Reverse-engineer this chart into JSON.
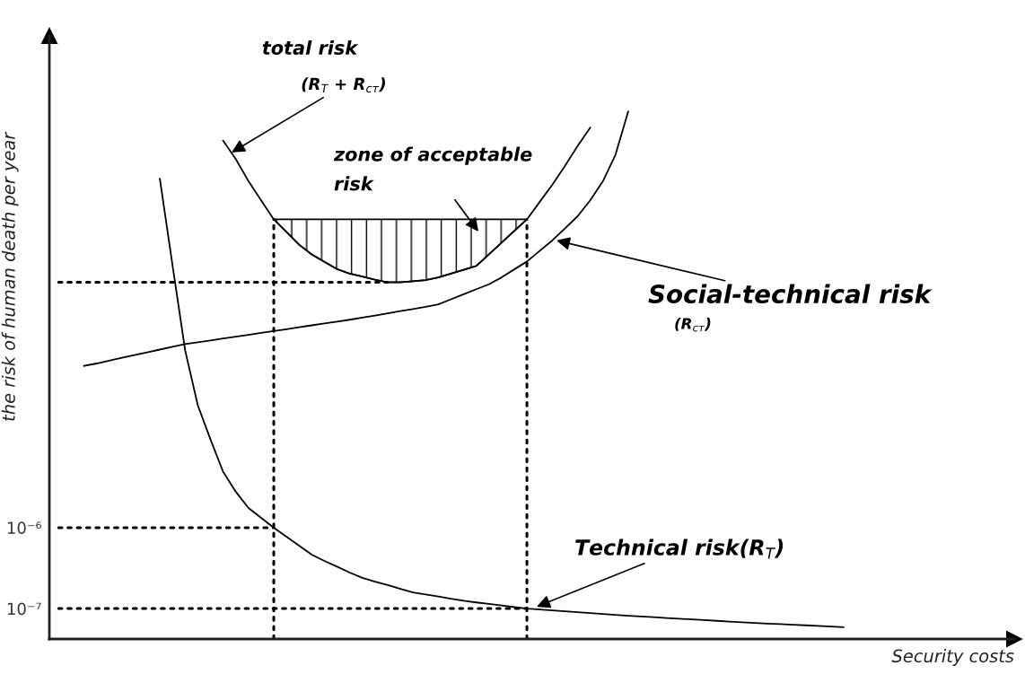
{
  "chart_data": {
    "type": "line",
    "xlabel": "Security costs",
    "ylabel": "the risk of human death per year",
    "log": "y",
    "ylim": [
      4.2e-08,
      1.2
    ],
    "yticks": [
      {
        "value": 1e-07,
        "label": "10⁻⁷"
      },
      {
        "value": 1e-06,
        "label": "10⁻⁶"
      }
    ],
    "tick_labels": "y",
    "grid": false,
    "marker": "none",
    "categories": [
      null,
      null,
      null,
      null,
      null,
      null,
      null,
      null,
      null,
      null,
      null,
      null,
      null,
      null,
      null,
      null,
      null,
      null,
      null,
      null,
      null,
      null,
      null,
      null,
      null,
      null,
      null,
      null,
      null,
      null,
      null,
      null,
      null,
      null,
      null,
      null,
      null,
      null,
      null,
      null,
      null,
      null,
      null,
      null,
      null,
      null,
      null,
      null,
      null,
      null,
      null,
      null,
      null,
      null,
      null,
      null,
      null,
      null,
      null,
      null,
      null,
      null,
      null
    ],
    "series": [
      {
        "color": "#000000",
        "values": [
          null,
          null,
          null,
          null,
          null,
          null,
          null,
          null,
          0.0205,
          0.00175,
          0.000155,
          3.24e-05,
          1.23e-05,
          4.89e-06,
          2.78e-06,
          1.75e-06,
          1.32e-06,
          1e-06,
          7.74e-07,
          6e-07,
          4.64e-07,
          3.88e-07,
          3.29e-07,
          2.78e-07,
          2.39e-07,
          2.15e-07,
          1.95e-07,
          1.75e-07,
          1.58e-07,
          1.49e-07,
          1.41e-07,
          1.32e-07,
          1.25e-07,
          1.19e-07,
          1.14e-07,
          1.09e-07,
          1.04e-07,
          1e-07,
          9.75e-08,
          9.5e-08,
          9.26e-08,
          9.03e-08,
          8.8e-08,
          8.58e-08,
          8.36e-08,
          8.15e-08,
          7.98e-08,
          7.82e-08,
          7.64e-08,
          7.48e-08,
          7.34e-08,
          7.19e-08,
          7.05e-08,
          6.89e-08,
          6.75e-08,
          6.64e-08,
          6.52e-08,
          6.41e-08,
          6.31e-08,
          6.2e-08,
          6.09e-08,
          6e-08,
          5.89e-08
        ]
      },
      {
        "color": "#000000",
        "values": [
          null,
          null,
          0.0001,
          0.000107,
          0.000116,
          0.000126,
          0.000136,
          0.000147,
          0.000159,
          0.000172,
          0.000186,
          0.000196,
          0.000206,
          0.000218,
          0.00023,
          0.000242,
          0.000256,
          0.000269,
          0.000284,
          0.0003,
          0.000317,
          0.000334,
          0.000353,
          0.000372,
          0.000394,
          0.000419,
          0.000447,
          0.000475,
          0.000505,
          0.000538,
          0.000577,
          0.000665,
          0.000769,
          0.000887,
          0.00102,
          0.00124,
          0.00156,
          0.00195,
          0.00263,
          0.00355,
          0.00498,
          0.00706,
          0.0111,
          0.0191,
          0.0409,
          0.139,
          null,
          null,
          null,
          null,
          null,
          null,
          null,
          null,
          null,
          null,
          null,
          null,
          null,
          null,
          null,
          null,
          null
        ]
      },
      {
        "color": "#000000",
        "values": [
          null,
          null,
          null,
          null,
          null,
          null,
          null,
          null,
          null,
          null,
          null,
          null,
          null,
          0.0607,
          0.036,
          0.0192,
          0.0111,
          0.00647,
          0.00453,
          0.00315,
          0.00238,
          0.00193,
          0.00157,
          0.00138,
          0.00127,
          0.00116,
          0.00108,
          0.00108,
          0.00111,
          0.00115,
          0.00124,
          0.00138,
          0.00154,
          0.00172,
          0.00239,
          0.00333,
          0.00466,
          0.00647,
          0.0106,
          0.0173,
          0.0296,
          0.0521,
          0.0879,
          null,
          null,
          null,
          null,
          null,
          null,
          null,
          null,
          null,
          null,
          null,
          null,
          null,
          null,
          null,
          null,
          null,
          null,
          null,
          null
        ],
        "lower": [
          null,
          null,
          null,
          null,
          null,
          null,
          null,
          null,
          null,
          null,
          null,
          null,
          null,
          null,
          null,
          null,
          null,
          0.00647,
          0.00453,
          0.00315,
          0.00238,
          0.00193,
          0.00157,
          0.00138,
          0.00127,
          0.00116,
          0.00108,
          0.00108,
          0.00111,
          0.00115,
          0.00124,
          0.00138,
          0.00154,
          0.00172,
          0.00239,
          0.00333,
          0.00466,
          0.00647,
          null,
          null,
          null,
          null,
          null,
          null,
          null,
          null,
          null,
          null,
          null,
          null,
          null,
          null,
          null,
          null,
          null,
          null,
          null,
          null,
          null,
          null,
          null,
          null,
          null
        ],
        "upper": [
          null,
          null,
          null,
          null,
          null,
          null,
          null,
          null,
          null,
          null,
          null,
          null,
          null,
          null,
          null,
          null,
          null,
          0.00647,
          0.00647,
          0.00647,
          0.00647,
          0.00647,
          0.00647,
          0.00647,
          0.00647,
          0.00647,
          0.00647,
          0.00647,
          0.00647,
          0.00647,
          0.00647,
          0.00647,
          0.00647,
          0.00647,
          0.00647,
          0.00647,
          0.00647,
          0.00647,
          null,
          null,
          null,
          null,
          null,
          null,
          null,
          null,
          null,
          null,
          null,
          null,
          null,
          null,
          null,
          null,
          null,
          null,
          null,
          null,
          null,
          null,
          null,
          null,
          null
        ]
      },
      {
        "color": "#000000",
        "line_style": "dotted",
        "values": [
          0.00108,
          0.00108,
          0.00108,
          0.00108,
          0.00108,
          0.00108,
          0.00108,
          0.00108,
          0.00108,
          0.00108,
          0.00108,
          0.00108,
          0.00108,
          0.00108,
          0.00108,
          0.00108,
          0.00108,
          0.00108,
          0.00108,
          0.00108,
          0.00108,
          0.00108,
          0.00108,
          0.00108,
          0.00108,
          0.00108,
          0.00108,
          null,
          null,
          null,
          null,
          null,
          null,
          null,
          null,
          null,
          null,
          null,
          null,
          null,
          null,
          null,
          null,
          null,
          null,
          null,
          null,
          null,
          null,
          null,
          null,
          null,
          null,
          null,
          null,
          null,
          null,
          null,
          null,
          null,
          null,
          null,
          null
        ]
      },
      {
        "color": "#000000",
        "line_style": "dotted",
        "values": [
          1e-06,
          1e-06,
          1e-06,
          1e-06,
          1e-06,
          1e-06,
          1e-06,
          1e-06,
          1e-06,
          1e-06,
          1e-06,
          1e-06,
          1e-06,
          1e-06,
          1e-06,
          1e-06,
          1e-06,
          1e-06,
          null,
          null,
          null,
          null,
          null,
          null,
          null,
          null,
          null,
          null,
          null,
          null,
          null,
          null,
          null,
          null,
          null,
          null,
          null,
          null,
          null,
          null,
          null,
          null,
          null,
          null,
          null,
          null,
          null,
          null,
          null,
          null,
          null,
          null,
          null,
          null,
          null,
          null,
          null,
          null,
          null,
          null,
          null,
          null,
          null
        ]
      },
      {
        "color": "#000000",
        "line_style": "dotted",
        "values": [
          1e-07,
          1e-07,
          1e-07,
          1e-07,
          1e-07,
          1e-07,
          1e-07,
          1e-07,
          1e-07,
          1e-07,
          1e-07,
          1e-07,
          1e-07,
          1e-07,
          1e-07,
          1e-07,
          1e-07,
          1e-07,
          1e-07,
          1e-07,
          1e-07,
          1e-07,
          1e-07,
          1e-07,
          1e-07,
          1e-07,
          1e-07,
          1e-07,
          1e-07,
          1e-07,
          1e-07,
          1e-07,
          1e-07,
          1e-07,
          1e-07,
          1e-07,
          1e-07,
          1e-07,
          null,
          null,
          null,
          null,
          null,
          null,
          null,
          null,
          null,
          null,
          null,
          null,
          null,
          null,
          null,
          null,
          null,
          null,
          null,
          null,
          null,
          null,
          null,
          null,
          null
        ]
      }
    ],
    "annotations": [
      "total risk",
      "(R$_{T}$ + R$_{ст}$)",
      "zone of acceptable\nrisk",
      "Social-technical risk",
      "(R$_{ст}$)",
      "Technical risk(R$_{T}$)"
    ]
  }
}
